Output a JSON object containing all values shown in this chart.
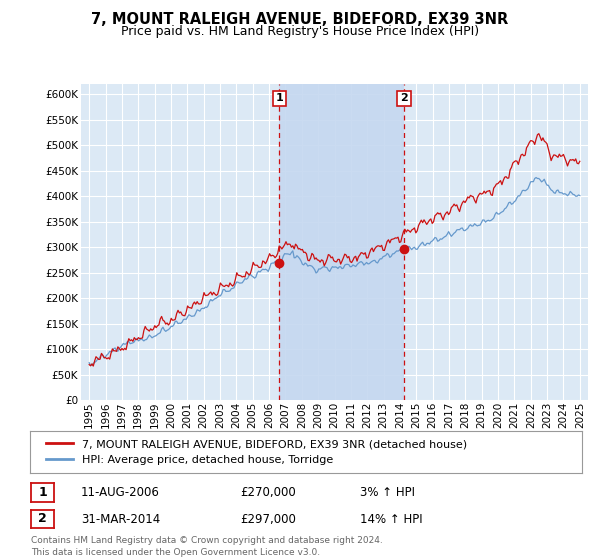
{
  "title": "7, MOUNT RALEIGH AVENUE, BIDEFORD, EX39 3NR",
  "subtitle": "Price paid vs. HM Land Registry's House Price Index (HPI)",
  "yticks": [
    0,
    50000,
    100000,
    150000,
    200000,
    250000,
    300000,
    350000,
    400000,
    450000,
    500000,
    550000,
    600000
  ],
  "ylim": [
    0,
    620000
  ],
  "xlim": [
    1994.5,
    2025.5
  ],
  "background_color": "#ffffff",
  "plot_bg_color": "#dce9f5",
  "shade_color": "#c5d8f0",
  "grid_color": "#ffffff",
  "hpi_color": "#6699cc",
  "price_color": "#cc1111",
  "marker1_x": 2006.62,
  "marker1_y": 270000,
  "marker1_label": "1",
  "marker2_x": 2014.25,
  "marker2_y": 297000,
  "marker2_label": "2",
  "vline1_x": 2006.62,
  "vline2_x": 2014.25,
  "vline_color": "#cc1111",
  "legend_label1": "7, MOUNT RALEIGH AVENUE, BIDEFORD, EX39 3NR (detached house)",
  "legend_label2": "HPI: Average price, detached house, Torridge",
  "table_row1": [
    "1",
    "11-AUG-2006",
    "£270,000",
    "3% ↑ HPI"
  ],
  "table_row2": [
    "2",
    "31-MAR-2014",
    "£297,000",
    "14% ↑ HPI"
  ],
  "footer": "Contains HM Land Registry data © Crown copyright and database right 2024.\nThis data is licensed under the Open Government Licence v3.0.",
  "title_fontsize": 10.5,
  "subtitle_fontsize": 9,
  "tick_fontsize": 7.5,
  "legend_fontsize": 8,
  "table_fontsize": 8.5,
  "footer_fontsize": 6.5
}
